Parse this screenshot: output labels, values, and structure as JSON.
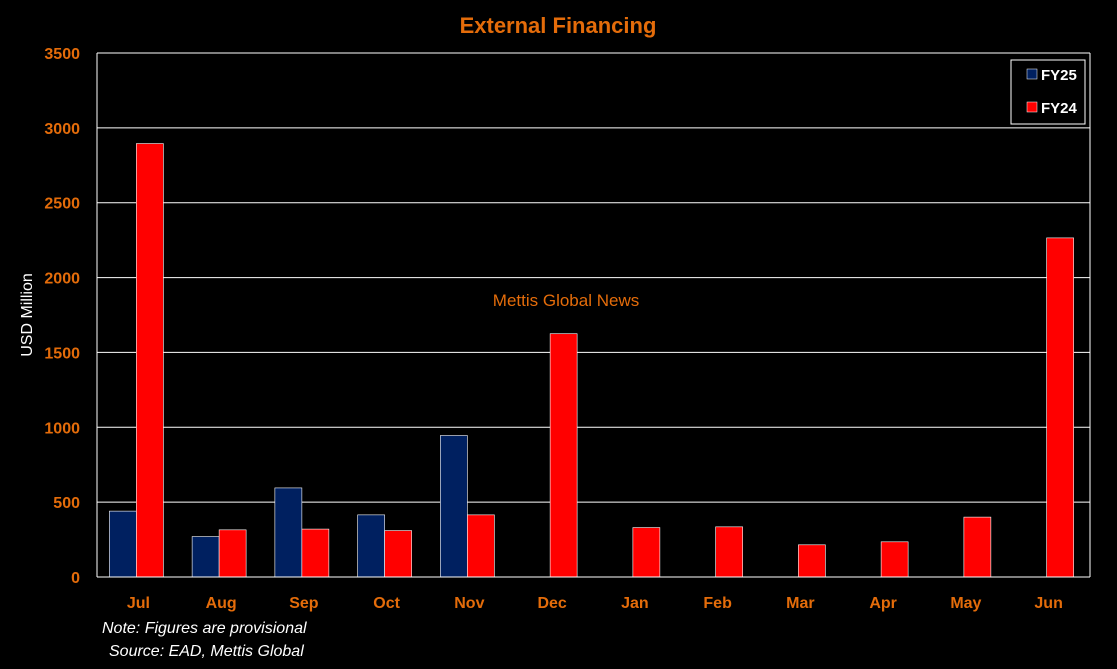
{
  "colors": {
    "background": "#000000",
    "accent_orange": "#E46C0A",
    "grid": "#FFFFFF",
    "fy25": "#002060",
    "fy24": "#FF0000",
    "text_white": "#FFFFFF"
  },
  "chart_data": {
    "type": "bar",
    "title": "External Financing",
    "ylabel": "USD Million",
    "xlabel": "",
    "ylim": [
      0,
      3500
    ],
    "yticks": [
      0,
      500,
      1000,
      1500,
      2000,
      2500,
      3000,
      3500
    ],
    "ytick_labels": [
      "0",
      "500",
      "1000",
      "1500",
      "2000",
      "2500",
      "3000",
      "3500"
    ],
    "categories": [
      "Jul",
      "Aug",
      "Sep",
      "Oct",
      "Nov",
      "Dec",
      "Jan",
      "Feb",
      "Mar",
      "Apr",
      "May",
      "Jun"
    ],
    "series": [
      {
        "name": "FY25",
        "color": "#002060",
        "values": [
          440,
          270,
          595,
          415,
          945,
          null,
          null,
          null,
          null,
          null,
          null,
          null
        ]
      },
      {
        "name": "FY24",
        "color": "#FF0000",
        "values": [
          2895,
          315,
          320,
          310,
          415,
          1625,
          330,
          335,
          215,
          235,
          400,
          2265
        ]
      }
    ],
    "grid": true,
    "legend_position": "top-right"
  },
  "annotations": {
    "watermark": "Mettis Global News",
    "note": "Note: Figures are provisional",
    "source": "Source: EAD, Mettis Global"
  }
}
